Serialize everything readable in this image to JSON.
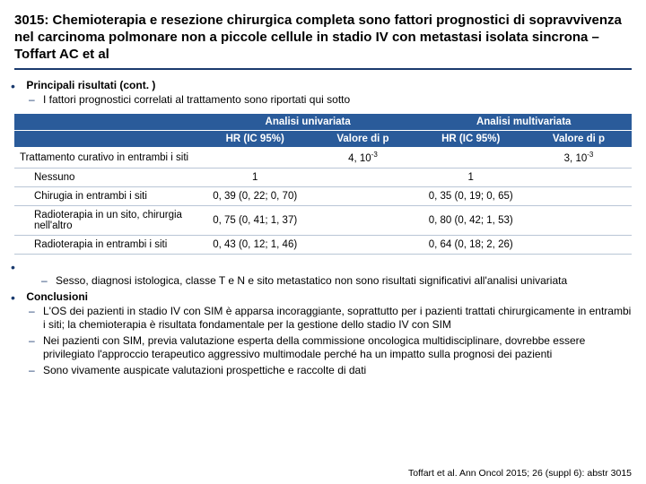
{
  "title": "3015: Chemioterapia e resezione chirurgica completa sono fattori prognostici di sopravvivenza nel carcinoma polmonare non a piccole cellule in stadio IV con metastasi isolata sincrona – Toffart AC et al",
  "section1_heading": "Principali risultati (cont. )",
  "section1_sub": "I fattori prognostici correlati al trattamento sono riportati qui sotto",
  "table": {
    "header_uni": "Analisi univariata",
    "header_multi": "Analisi multivariata",
    "sub_hr": "HR (IC 95%)",
    "sub_p": "Valore di p",
    "rows": [
      {
        "label": "Trattamento curativo in entrambi i siti",
        "indent": false,
        "uni_hr": "",
        "uni_p_html": "4, 10<sup>-3</sup>",
        "mul_hr": "",
        "mul_p_html": "3, 10<sup>-3</sup>"
      },
      {
        "label": "Nessuno",
        "indent": true,
        "uni_hr": "1",
        "uni_p_html": "",
        "mul_hr": "1",
        "mul_p_html": ""
      },
      {
        "label": "Chirugia in entrambi i siti",
        "indent": true,
        "uni_hr": "0, 39 (0, 22; 0, 70)",
        "uni_p_html": "",
        "mul_hr": "0, 35 (0, 19; 0, 65)",
        "mul_p_html": ""
      },
      {
        "label": "Radioterapia in un sito, chirurgia nell'altro",
        "indent": true,
        "uni_hr": "0, 75 (0, 41; 1, 37)",
        "uni_p_html": "",
        "mul_hr": "0, 80 (0, 42; 1, 53)",
        "mul_p_html": ""
      },
      {
        "label": "Radioterapia in entrambi i siti",
        "indent": true,
        "uni_hr": "0, 43 (0, 12; 1, 46)",
        "uni_p_html": "",
        "mul_hr": "0, 64 (0, 18; 2, 26)",
        "mul_p_html": ""
      }
    ],
    "header_bg": "#2a5b9a",
    "header_fg": "#ffffff",
    "row_border": "#b9c6d6"
  },
  "post_table_sub": "Sesso, diagnosi istologica, classe T e N e sito metastatico non sono risultati significativi all'analisi univariata",
  "conclusions_heading": "Conclusioni",
  "conclusions": [
    "L'OS dei pazienti in stadio IV con SIM è apparsa incoraggiante, soprattutto per i pazienti trattati chirurgicamente in entrambi i siti; la chemioterapia è risultata fondamentale per la gestione dello stadio IV con SIM",
    "Nei pazienti con SIM, previa valutazione esperta della commissione oncologica multidisciplinare, dovrebbe essere privilegiato l'approccio terapeutico aggressivo multimodale perché ha un impatto sulla prognosi dei pazienti",
    "Sono vivamente auspicate valutazioni prospettiche e raccolte di dati"
  ],
  "citation": "Toffart et al. Ann Oncol 2015; 26 (suppl 6): abstr 3015"
}
